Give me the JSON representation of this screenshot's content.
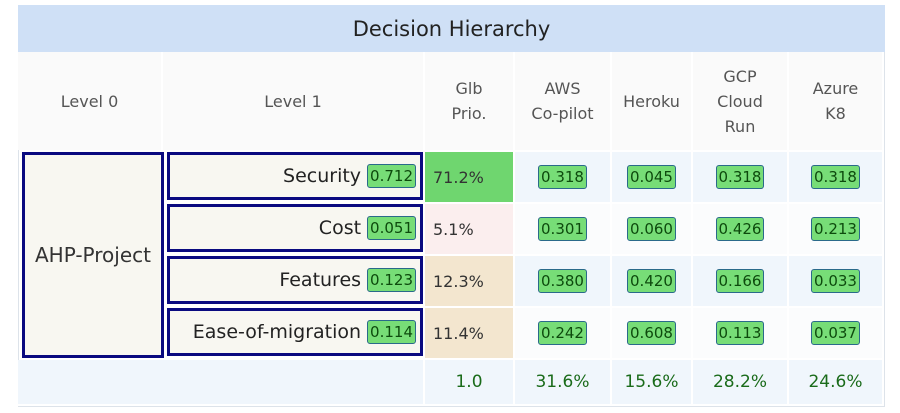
{
  "title": "Decision Hierarchy",
  "headers": [
    "Level 0",
    "Level 1",
    "Glb Prio.",
    "AWS Co-pilot",
    "Heroku",
    "GCP Cloud Run",
    "Azure K8"
  ],
  "level0": "AHP-Project",
  "criteria": [
    {
      "name": "Security",
      "weight": "0.712",
      "global": "71.2%",
      "color": "#6fd66f",
      "alts": [
        "0.318",
        "0.045",
        "0.318",
        "0.318"
      ]
    },
    {
      "name": "Cost",
      "weight": "0.051",
      "global": "5.1%",
      "color": "#fbeeee",
      "alts": [
        "0.301",
        "0.060",
        "0.426",
        "0.213"
      ]
    },
    {
      "name": "Features",
      "weight": "0.123",
      "global": "12.3%",
      "color": "#f3e6cf",
      "alts": [
        "0.380",
        "0.420",
        "0.166",
        "0.033"
      ]
    },
    {
      "name": "Ease-of-migration",
      "weight": "0.114",
      "global": "11.4%",
      "color": "#f3e6cf",
      "alts": [
        "0.242",
        "0.608",
        "0.113",
        "0.037"
      ]
    }
  ],
  "totals": {
    "global": "1.0",
    "alts": [
      "31.6%",
      "15.6%",
      "28.2%",
      "24.6%"
    ]
  }
}
